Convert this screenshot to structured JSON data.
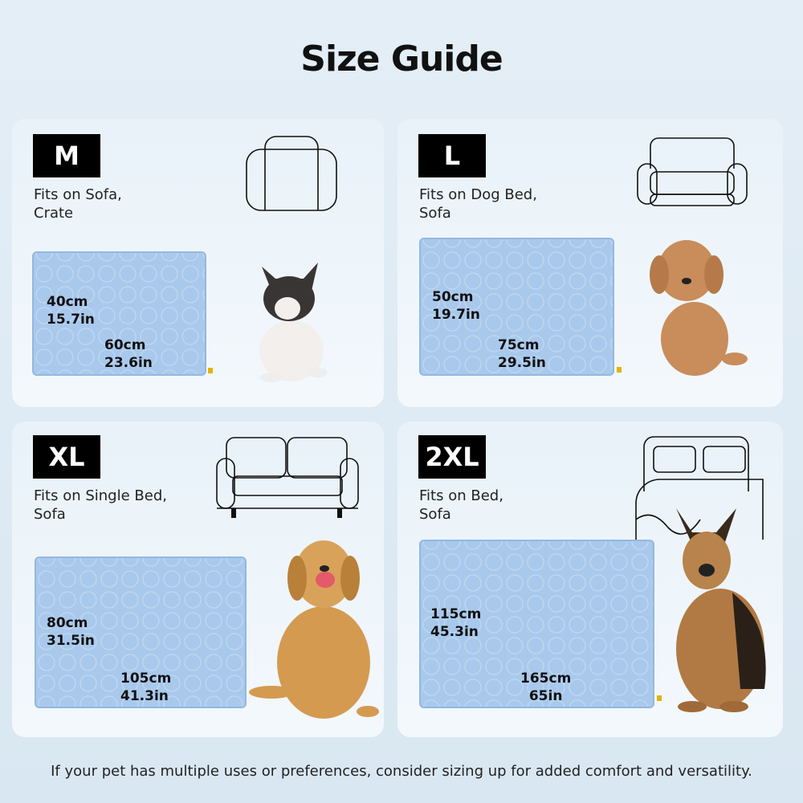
{
  "title": "Size Guide",
  "sizes": [
    {
      "label": "M",
      "fits": "Fits on Sofa,\nCrate",
      "height_cm": "40cm",
      "height_in": "15.7in",
      "width_cm": "60cm",
      "width_in": "23.6in",
      "furniture_icon": "crate-bed-icon",
      "pet": "french-bulldog"
    },
    {
      "label": "L",
      "fits": "Fits on Dog Bed,\nSofa",
      "height_cm": "50cm",
      "height_in": "19.7in",
      "width_cm": "75cm",
      "width_in": "29.5in",
      "furniture_icon": "dog-bed-icon",
      "pet": "poodle"
    },
    {
      "label": "XL",
      "fits": "Fits on Single Bed,\nSofa",
      "height_cm": "80cm",
      "height_in": "31.5in",
      "width_cm": "105cm",
      "width_in": "41.3in",
      "furniture_icon": "sofa-icon",
      "pet": "golden-retriever"
    },
    {
      "label": "2XL",
      "fits": "Fits on Bed,\nSofa",
      "height_cm": "115cm",
      "height_in": "45.3in",
      "width_cm": "165cm",
      "width_in": "65in",
      "furniture_icon": "double-bed-icon",
      "pet": "german-shepherd"
    }
  ],
  "footer": "If your pet has multiple uses or preferences, consider sizing up for added comfort and versatility.",
  "colors": {
    "mat": "#a9c9ec",
    "badge": "#000000",
    "background": "#dde9f3"
  }
}
